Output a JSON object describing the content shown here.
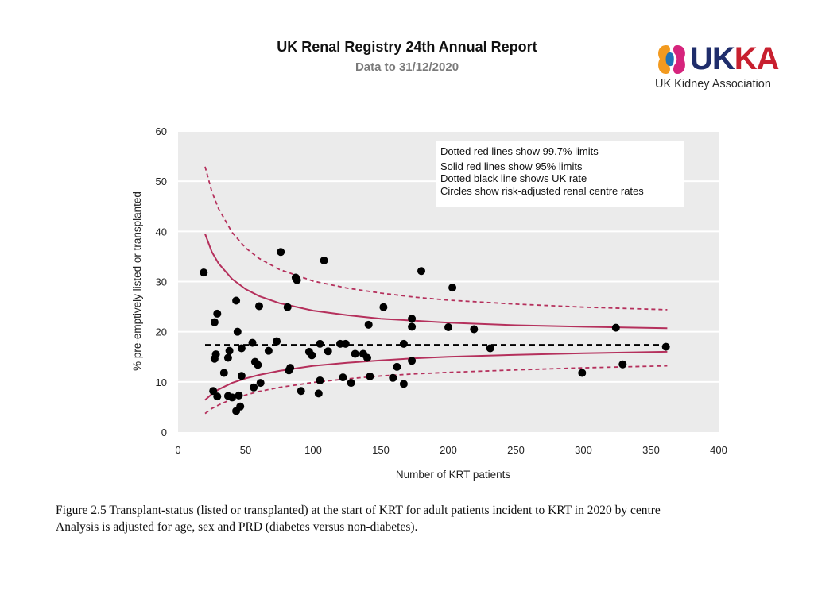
{
  "header": {
    "title": "UK Renal Registry 24th Annual Report",
    "subtitle": "Data to 31/12/2020"
  },
  "logo": {
    "word_uk": "UK",
    "word_ka": "KA",
    "tagline": "UK Kidney Association",
    "colors": {
      "navy": "#1f2d6b",
      "red": "#c8202f",
      "orange": "#f29a1f",
      "blue": "#1f73b7",
      "pink": "#d6247d"
    }
  },
  "chart_data": {
    "type": "scatter",
    "title": "",
    "xlabel": "Number of KRT patients",
    "ylabel": "% pre-emptively listed or transplanted",
    "xlim": [
      0,
      400
    ],
    "ylim": [
      0,
      60
    ],
    "xticks": [
      0,
      50,
      100,
      150,
      200,
      250,
      300,
      350,
      400
    ],
    "yticks": [
      0,
      10,
      20,
      30,
      40,
      50,
      60
    ],
    "grid": true,
    "legend_placement": "top-right",
    "legend": [
      "Dotted red lines show 99.7% limits",
      "Solid red lines show 95% limits",
      "Dotted black line shows UK rate",
      "Circles show risk-adjusted renal centre rates"
    ],
    "uk_rate": 17.4,
    "limits_x": [
      20,
      25,
      30,
      40,
      50,
      60,
      75,
      100,
      125,
      150,
      175,
      200,
      250,
      300,
      362
    ],
    "upper_997": [
      52.9,
      47.9,
      44.5,
      39.8,
      36.7,
      34.6,
      32.4,
      30.1,
      28.7,
      27.7,
      26.9,
      26.3,
      25.5,
      24.9,
      24.4
    ],
    "upper_95": [
      39.5,
      35.9,
      33.6,
      30.5,
      28.5,
      27.1,
      25.7,
      24.2,
      23.3,
      22.6,
      22.2,
      21.8,
      21.3,
      21.0,
      20.7
    ],
    "lower_95": [
      6.4,
      7.6,
      8.5,
      9.8,
      10.7,
      11.4,
      12.2,
      13.2,
      13.8,
      14.3,
      14.7,
      15.0,
      15.4,
      15.7,
      16.0
    ],
    "lower_997": [
      3.7,
      4.7,
      5.4,
      6.6,
      7.4,
      8.1,
      8.9,
      9.9,
      10.6,
      11.2,
      11.6,
      11.9,
      12.4,
      12.8,
      13.2
    ],
    "centres": [
      {
        "x": 19,
        "y": 31.8
      },
      {
        "x": 26,
        "y": 8.2
      },
      {
        "x": 27,
        "y": 21.9
      },
      {
        "x": 27,
        "y": 14.6
      },
      {
        "x": 28,
        "y": 15.5
      },
      {
        "x": 29,
        "y": 23.6
      },
      {
        "x": 29,
        "y": 7.1
      },
      {
        "x": 34,
        "y": 11.8
      },
      {
        "x": 37,
        "y": 7.2
      },
      {
        "x": 37,
        "y": 14.8
      },
      {
        "x": 38,
        "y": 16.2
      },
      {
        "x": 40,
        "y": 6.9
      },
      {
        "x": 43,
        "y": 26.2
      },
      {
        "x": 43,
        "y": 4.2
      },
      {
        "x": 44,
        "y": 20.0
      },
      {
        "x": 45,
        "y": 7.3
      },
      {
        "x": 46,
        "y": 5.1
      },
      {
        "x": 47,
        "y": 16.7
      },
      {
        "x": 47,
        "y": 11.2
      },
      {
        "x": 55,
        "y": 17.8
      },
      {
        "x": 57,
        "y": 14.0
      },
      {
        "x": 56,
        "y": 8.9
      },
      {
        "x": 59,
        "y": 13.4
      },
      {
        "x": 60,
        "y": 25.1
      },
      {
        "x": 61,
        "y": 9.8
      },
      {
        "x": 67,
        "y": 16.2
      },
      {
        "x": 73,
        "y": 18.1
      },
      {
        "x": 76,
        "y": 35.9
      },
      {
        "x": 81,
        "y": 24.9
      },
      {
        "x": 82,
        "y": 12.3
      },
      {
        "x": 83,
        "y": 12.8
      },
      {
        "x": 87,
        "y": 30.8
      },
      {
        "x": 88,
        "y": 30.3
      },
      {
        "x": 91,
        "y": 8.2
      },
      {
        "x": 97,
        "y": 16.0
      },
      {
        "x": 99,
        "y": 15.3
      },
      {
        "x": 104,
        "y": 7.7
      },
      {
        "x": 105,
        "y": 17.6
      },
      {
        "x": 105,
        "y": 10.3
      },
      {
        "x": 108,
        "y": 34.2
      },
      {
        "x": 111,
        "y": 16.1
      },
      {
        "x": 120,
        "y": 17.6
      },
      {
        "x": 122,
        "y": 10.9
      },
      {
        "x": 124,
        "y": 17.6
      },
      {
        "x": 128,
        "y": 9.8
      },
      {
        "x": 131,
        "y": 15.6
      },
      {
        "x": 137,
        "y": 15.6
      },
      {
        "x": 140,
        "y": 14.8
      },
      {
        "x": 141,
        "y": 21.4
      },
      {
        "x": 142,
        "y": 11.1
      },
      {
        "x": 152,
        "y": 24.9
      },
      {
        "x": 159,
        "y": 10.8
      },
      {
        "x": 162,
        "y": 13.0
      },
      {
        "x": 167,
        "y": 17.6
      },
      {
        "x": 167,
        "y": 9.6
      },
      {
        "x": 173,
        "y": 14.2
      },
      {
        "x": 173,
        "y": 22.6
      },
      {
        "x": 173,
        "y": 21.0
      },
      {
        "x": 180,
        "y": 32.1
      },
      {
        "x": 200,
        "y": 20.9
      },
      {
        "x": 203,
        "y": 28.8
      },
      {
        "x": 219,
        "y": 20.5
      },
      {
        "x": 231,
        "y": 16.7
      },
      {
        "x": 299,
        "y": 11.8
      },
      {
        "x": 324,
        "y": 20.8
      },
      {
        "x": 329,
        "y": 13.5
      },
      {
        "x": 361,
        "y": 17.0
      }
    ]
  },
  "caption": {
    "line1": "Figure 2.5 Transplant-status (listed or transplanted) at the start of KRT for adult patients incident to KRT in 2020 by centre",
    "line2": "Analysis is adjusted for age, sex and PRD (diabetes versus non-diabetes)."
  },
  "colors": {
    "plot_bg": "#ebebeb",
    "grid": "#ffffff",
    "limit_line": "#b5305c",
    "uk_line": "#000000",
    "point": "#000000"
  }
}
